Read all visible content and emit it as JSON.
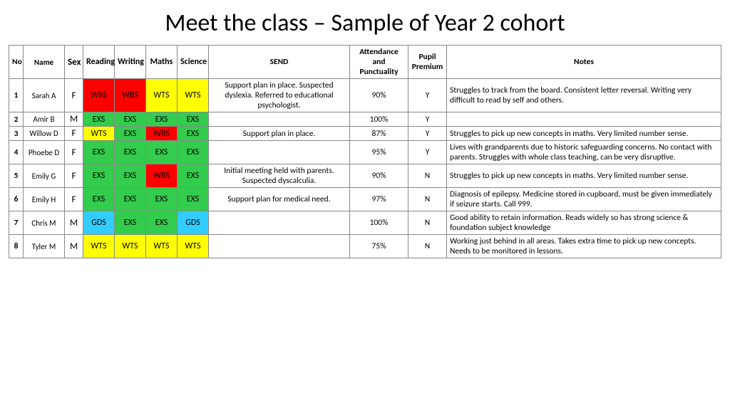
{
  "title": "Meet the class – Sample of Year 2 cohort",
  "colors": {
    "WBS": "#ff0000",
    "WTS": "#ffff00",
    "EXS": "#33cc4d",
    "GDS": "#33ccff"
  },
  "columns": [
    "No",
    "Name",
    "Sex",
    "Reading",
    "Writing",
    "Maths",
    "Science",
    "SEND",
    "Attendance and Punctuality",
    "Pupil Premium",
    "Notes"
  ],
  "rows": [
    {
      "no": "1",
      "name": "Sarah A",
      "sex": "F",
      "reading": "WBS",
      "writing": "WBS",
      "maths": "WTS",
      "science": "WTS",
      "send": "Support plan in place. Suspected dyslexia. Referred to educational psychologist.",
      "attendance": "90%",
      "pp": "Y",
      "notes": "Struggles to track from the board. Consistent letter reversal. Writing very difficult to read by self and others."
    },
    {
      "no": "2",
      "name": "Amir B",
      "sex": "M",
      "reading": "EXS",
      "writing": "EXS",
      "maths": "EXS",
      "science": "EXS",
      "send": "",
      "attendance": "100%",
      "pp": "Y",
      "notes": ""
    },
    {
      "no": "3",
      "name": "Willow D",
      "sex": "F",
      "reading": "WTS",
      "writing": "EXS",
      "maths": "WBS",
      "science": "EXS",
      "send": "Support plan in place.",
      "attendance": "87%",
      "pp": "Y",
      "notes": "Struggles to pick up new concepts in maths. Very limited number sense."
    },
    {
      "no": "4",
      "name": "Phoebe D",
      "sex": "F",
      "reading": "EXS",
      "writing": "EXS",
      "maths": "EXS",
      "science": "EXS",
      "send": "",
      "attendance": "95%",
      "pp": "Y",
      "notes": "Lives with grandparents due to historic safeguarding concerns. No contact with parents. Struggles with whole class teaching, can be very disruptive."
    },
    {
      "no": "5",
      "name": "Emily G",
      "sex": "F",
      "reading": "EXS",
      "writing": "EXS",
      "maths": "WBS",
      "science": "EXS",
      "send": "Initial meeting held with parents. Suspected dyscalculia.",
      "attendance": "90%",
      "pp": "N",
      "notes": "Struggles to pick up new concepts in maths. Very limited number sense."
    },
    {
      "no": "6",
      "name": "Emily H",
      "sex": "F",
      "reading": "EXS",
      "writing": "EXS",
      "maths": "EXS",
      "science": "EXS",
      "send": "Support plan for medical need.",
      "attendance": "97%",
      "pp": "N",
      "notes": "Diagnosis of epilepsy. Medicine stored in cupboard, must be given immediately if seizure starts. Call 999."
    },
    {
      "no": "7",
      "name": "Chris M",
      "sex": "M",
      "reading": "GDS",
      "writing": "EXS",
      "maths": "EXS",
      "science": "GDS",
      "send": "",
      "attendance": "100%",
      "pp": "N",
      "notes": "Good ability to retain information. Reads widely so has strong science & foundation subject knowledge"
    },
    {
      "no": "8",
      "name": "Tyler M",
      "sex": "M",
      "reading": "WTS",
      "writing": "WTS",
      "maths": "WTS",
      "science": "WTS",
      "send": "",
      "attendance": "75%",
      "pp": "N",
      "notes": "Working just behind in all areas. Takes extra time to pick up new concepts. Needs to be monitored in lessons."
    }
  ]
}
